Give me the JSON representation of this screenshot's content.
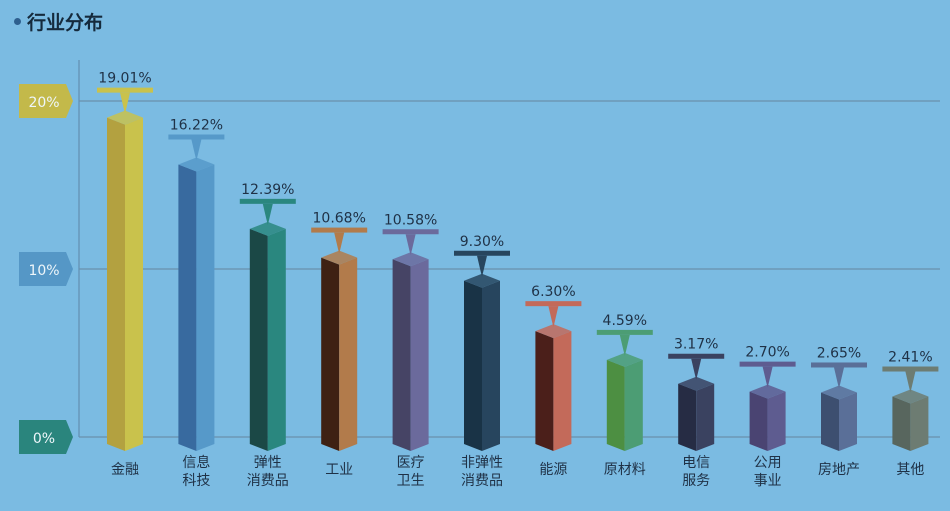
{
  "title": "行业分布",
  "chart_data": {
    "type": "bar",
    "title": "行业分布",
    "categories": [
      [
        "金融"
      ],
      [
        "信息",
        "科技"
      ],
      [
        "弹性",
        "消费品"
      ],
      [
        "工业"
      ],
      [
        "医疗",
        "卫生"
      ],
      [
        "非弹性",
        "消费品"
      ],
      [
        "能源"
      ],
      [
        "原材料"
      ],
      [
        "电信",
        "服务"
      ],
      [
        "公用",
        "事业"
      ],
      [
        "房地产"
      ],
      [
        "其他"
      ]
    ],
    "values": [
      19.01,
      16.22,
      12.39,
      10.68,
      10.58,
      9.3,
      6.3,
      4.59,
      3.17,
      2.7,
      2.65,
      2.41
    ],
    "data_labels": [
      "19.01%",
      "16.22%",
      "12.39%",
      "10.68%",
      "10.58%",
      "9.30%",
      "6.30%",
      "4.59%",
      "3.17%",
      "2.70%",
      "2.65%",
      "2.41%"
    ],
    "colors": [
      [
        "#b3a140",
        "#c9c24c"
      ],
      [
        "#386a9f",
        "#5699c9"
      ],
      [
        "#1b4846",
        "#2a877f"
      ],
      [
        "#3e2113",
        "#b27b4b"
      ],
      [
        "#464465",
        "#6b6a9c"
      ],
      [
        "#193346",
        "#27455e"
      ],
      [
        "#4b1f1a",
        "#c36a5a"
      ],
      [
        "#4d8f42",
        "#4c9d74"
      ],
      [
        "#262c44",
        "#3a4260"
      ],
      [
        "#4a4472",
        "#5e5c90"
      ],
      [
        "#3d4f70",
        "#5a6f98"
      ],
      [
        "#58665e",
        "#6d7c72"
      ]
    ],
    "y_ticks": [
      "0%",
      "10%",
      "20%"
    ],
    "y_tick_values": [
      0,
      10,
      20
    ],
    "y_tick_colors": [
      "#2a857d",
      "#5597c6",
      "#c3b94a"
    ],
    "ylim": [
      0,
      20
    ],
    "grid": true
  }
}
